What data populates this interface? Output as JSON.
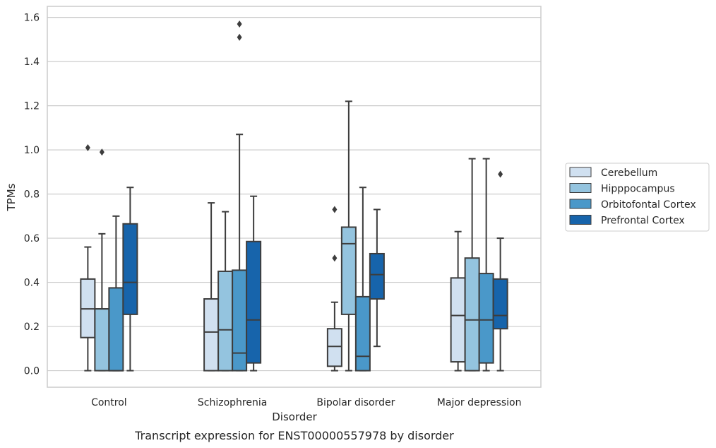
{
  "chart_data": {
    "type": "box",
    "title": "",
    "caption": "Transcript expression for ENST00000557978 by disorder",
    "xlabel": "Disorder",
    "ylabel": "TPMs",
    "ylim": [
      -0.075,
      1.65
    ],
    "yticks": [
      0.0,
      0.2,
      0.4,
      0.6,
      0.8,
      1.0,
      1.2,
      1.4,
      1.6
    ],
    "ytick_labels": [
      "0.0",
      "0.2",
      "0.4",
      "0.6",
      "0.8",
      "1.0",
      "1.2",
      "1.4",
      "1.6"
    ],
    "grid": "horizontal",
    "legend_position": "center-right",
    "categories": [
      "Control",
      "Schizophrenia",
      "Bipolar disorder",
      "Major depression"
    ],
    "series": [
      {
        "name": "Cerebellum",
        "color": "#d0e0f0",
        "boxes": [
          {
            "whisker_low": 0.0,
            "q1": 0.15,
            "median": 0.28,
            "q3": 0.415,
            "whisker_high": 0.56,
            "outliers": [
              1.01
            ]
          },
          {
            "whisker_low": 0.0,
            "q1": 0.0,
            "median": 0.175,
            "q3": 0.325,
            "whisker_high": 0.76,
            "outliers": []
          },
          {
            "whisker_low": 0.0,
            "q1": 0.02,
            "median": 0.11,
            "q3": 0.19,
            "whisker_high": 0.31,
            "outliers": [
              0.51,
              0.73
            ]
          },
          {
            "whisker_low": 0.0,
            "q1": 0.04,
            "median": 0.25,
            "q3": 0.42,
            "whisker_high": 0.63,
            "outliers": []
          }
        ]
      },
      {
        "name": "Hipppocampus",
        "color": "#94c4df",
        "boxes": [
          {
            "whisker_low": 0.0,
            "q1": 0.0,
            "median": 0.28,
            "q3": 0.28,
            "whisker_high": 0.62,
            "outliers": [
              0.99
            ]
          },
          {
            "whisker_low": 0.0,
            "q1": 0.0,
            "median": 0.185,
            "q3": 0.45,
            "whisker_high": 0.72,
            "outliers": []
          },
          {
            "whisker_low": 0.0,
            "q1": 0.255,
            "median": 0.575,
            "q3": 0.65,
            "whisker_high": 1.22,
            "outliers": []
          },
          {
            "whisker_low": 0.0,
            "q1": 0.0,
            "median": 0.23,
            "q3": 0.51,
            "whisker_high": 0.96,
            "outliers": []
          }
        ]
      },
      {
        "name": "Orbitofontal Cortex",
        "color": "#4a98c9",
        "boxes": [
          {
            "whisker_low": 0.0,
            "q1": 0.0,
            "median": 0.0,
            "q3": 0.375,
            "whisker_high": 0.7,
            "outliers": []
          },
          {
            "whisker_low": 0.0,
            "q1": 0.0,
            "median": 0.08,
            "q3": 0.455,
            "whisker_high": 1.07,
            "outliers": [
              1.51,
              1.57
            ]
          },
          {
            "whisker_low": 0.0,
            "q1": 0.0,
            "median": 0.065,
            "q3": 0.335,
            "whisker_high": 0.83,
            "outliers": []
          },
          {
            "whisker_low": 0.0,
            "q1": 0.035,
            "median": 0.23,
            "q3": 0.44,
            "whisker_high": 0.96,
            "outliers": []
          }
        ]
      },
      {
        "name": "Prefrontal Cortex",
        "color": "#1764ab",
        "boxes": [
          {
            "whisker_low": 0.0,
            "q1": 0.255,
            "median": 0.4,
            "q3": 0.665,
            "whisker_high": 0.83,
            "outliers": []
          },
          {
            "whisker_low": 0.0,
            "q1": 0.035,
            "median": 0.23,
            "q3": 0.585,
            "whisker_high": 0.79,
            "outliers": []
          },
          {
            "whisker_low": 0.11,
            "q1": 0.325,
            "median": 0.435,
            "q3": 0.53,
            "whisker_high": 0.73,
            "outliers": []
          },
          {
            "whisker_low": 0.0,
            "q1": 0.19,
            "median": 0.25,
            "q3": 0.415,
            "whisker_high": 0.6,
            "outliers": [
              0.89
            ]
          }
        ]
      }
    ]
  }
}
